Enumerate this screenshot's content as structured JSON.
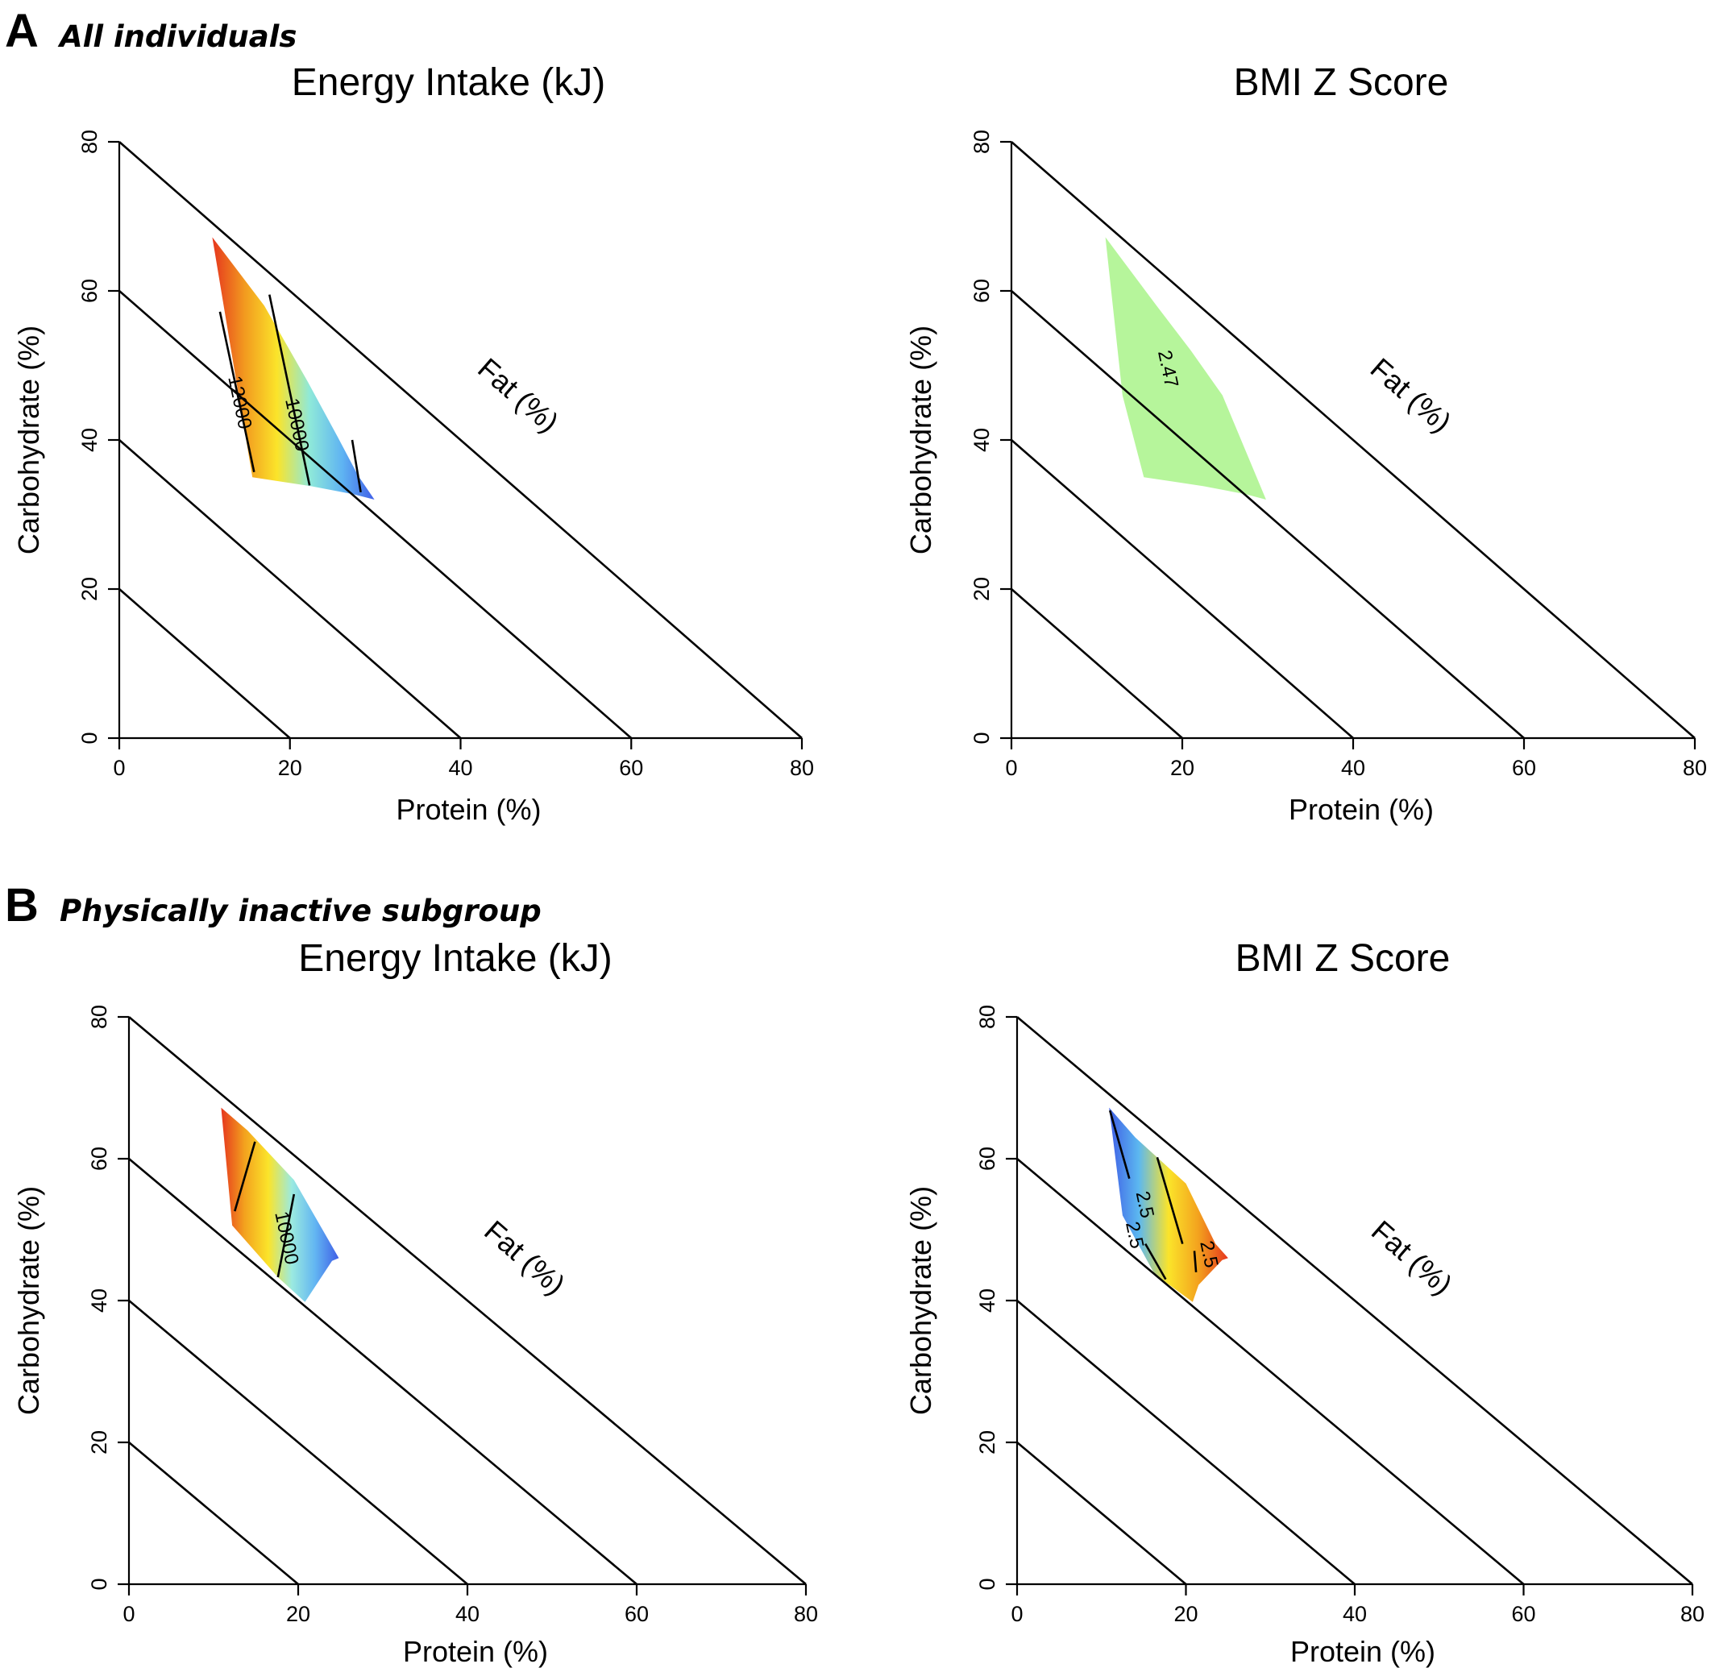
{
  "panels": [
    {
      "letter": "A",
      "caption": "All individuals"
    },
    {
      "letter": "B",
      "caption": "Physically inactive subgroup"
    }
  ],
  "chart_data": [
    {
      "type": "heatmap",
      "title": "Energy Intake (kJ)",
      "xlabel": "Protein (%)",
      "ylabel": "Carbohydrate (%)",
      "fat_label": "Fat (%)",
      "xlim": [
        0,
        80
      ],
      "ylim": [
        0,
        80
      ],
      "x_ticks": [
        "0",
        "20",
        "40",
        "60",
        "80"
      ],
      "y_ticks": [
        "0",
        "20",
        "40",
        "60",
        "80"
      ],
      "region": [
        [
          10.9,
          67.2
        ],
        [
          17,
          58
        ],
        [
          22,
          48
        ],
        [
          25.6,
          40.4
        ],
        [
          28,
          35.2
        ],
        [
          29.9,
          32
        ],
        [
          27.5,
          32.7
        ],
        [
          22.5,
          33.8
        ],
        [
          19,
          34.4
        ],
        [
          15.6,
          35
        ],
        [
          13.4,
          50
        ]
      ],
      "color_scale": [
        "#e6361e",
        "#f29a1f",
        "#fbe42a",
        "#8fe9d9",
        "#5fb4f2",
        "#4060e8"
      ],
      "contours": [
        {
          "label": "12000",
          "points": [
            [
              11.8,
              57.2
            ],
            [
              15.8,
              35.7
            ]
          ],
          "label_at": [
            14,
            45
          ]
        },
        {
          "label": "10000",
          "points": [
            [
              17.6,
              59.5
            ],
            [
              22.3,
              33.9
            ]
          ],
          "label_at": [
            20.7,
            42
          ]
        },
        {
          "label": "",
          "points": [
            [
              27.3,
              40
            ],
            [
              28.3,
              33
            ]
          ],
          "label_at": null
        }
      ]
    },
    {
      "type": "heatmap",
      "title": "BMI Z Score",
      "xlabel": "Protein (%)",
      "ylabel": "Carbohydrate (%)",
      "fat_label": "Fat (%)",
      "xlim": [
        0,
        80
      ],
      "ylim": [
        0,
        80
      ],
      "x_ticks": [
        "0",
        "20",
        "40",
        "60",
        "80"
      ],
      "y_ticks": [
        "0",
        "20",
        "40",
        "60",
        "80"
      ],
      "region": [
        [
          11,
          67.2
        ],
        [
          17,
          58
        ],
        [
          21,
          52
        ],
        [
          24.7,
          46
        ],
        [
          29.8,
          32
        ],
        [
          27.5,
          32.7
        ],
        [
          22.5,
          33.8
        ],
        [
          19,
          34.4
        ],
        [
          15.5,
          35
        ],
        [
          13,
          46
        ]
      ],
      "color_scale": [
        "#b6f59b"
      ],
      "contours": [
        {
          "label": "2.47",
          "points": [],
          "label_at": [
            18.2,
            49.5
          ]
        }
      ]
    },
    {
      "type": "heatmap",
      "title": "Energy Intake (kJ)",
      "xlabel": "Protein (%)",
      "ylabel": "Carbohydrate (%)",
      "fat_label": "Fat (%)",
      "xlim": [
        0,
        80
      ],
      "ylim": [
        0,
        80
      ],
      "x_ticks": [
        "0",
        "20",
        "40",
        "60",
        "80"
      ],
      "y_ticks": [
        "0",
        "20",
        "40",
        "60",
        "80"
      ],
      "region": [
        [
          10.9,
          67.2
        ],
        [
          14,
          64
        ],
        [
          19.5,
          57
        ],
        [
          24.8,
          46
        ],
        [
          24,
          45.6
        ],
        [
          20.8,
          39.8
        ],
        [
          17.6,
          43.3
        ],
        [
          12.2,
          50.6
        ]
      ],
      "color_scale": [
        "#e6361e",
        "#f3a21e",
        "#fbe42a",
        "#9beae0",
        "#62b5f2",
        "#3f5ee6"
      ],
      "contours": [
        {
          "label": "",
          "points": [
            [
              12.5,
              52.6
            ],
            [
              14.9,
              62.4
            ]
          ],
          "label_at": null
        },
        {
          "label": "10000",
          "points": [
            [
              19.5,
              55
            ],
            [
              17.6,
              43.3
            ]
          ],
          "label_at": [
            18.5,
            48.8
          ]
        }
      ]
    },
    {
      "type": "heatmap",
      "title": "BMI Z Score",
      "xlabel": "Protein (%)",
      "ylabel": "Carbohydrate (%)",
      "fat_label": "Fat (%)",
      "xlim": [
        0,
        80
      ],
      "ylim": [
        0,
        80
      ],
      "x_ticks": [
        "0",
        "20",
        "40",
        "60",
        "80"
      ],
      "y_ticks": [
        "0",
        "20",
        "40",
        "60",
        "80"
      ],
      "region": [
        [
          10.9,
          67.2
        ],
        [
          14,
          63
        ],
        [
          20,
          56.5
        ],
        [
          23.5,
          48
        ],
        [
          25,
          46
        ],
        [
          24.3,
          45.7
        ],
        [
          21.5,
          42.2
        ],
        [
          20.8,
          39.8
        ],
        [
          16.3,
          43.7
        ],
        [
          12.5,
          52
        ]
      ],
      "color_scale": [
        "#3f5ee6",
        "#5cb8f0",
        "#fbe42a",
        "#f3a21e",
        "#e6361e"
      ],
      "contours": [
        {
          "label": "2.5",
          "points": [
            [
              11,
              66.8
            ],
            [
              13.3,
              57.2
            ]
          ],
          "label_at": [
            15,
            53.5
          ]
        },
        {
          "label": "2.5",
          "points": [
            [
              16.6,
              60.2
            ],
            [
              19.6,
              48
            ]
          ],
          "label_at": [
            13.8,
            49.2
          ]
        },
        {
          "label": "2.5",
          "points": [
            [
              21,
              47
            ],
            [
              21.2,
              44
            ]
          ],
          "label_at": [
            22.6,
            46.5
          ]
        },
        {
          "label": "",
          "points": [
            [
              15.2,
              48
            ],
            [
              17.6,
              43
            ]
          ],
          "label_at": null
        }
      ]
    }
  ]
}
